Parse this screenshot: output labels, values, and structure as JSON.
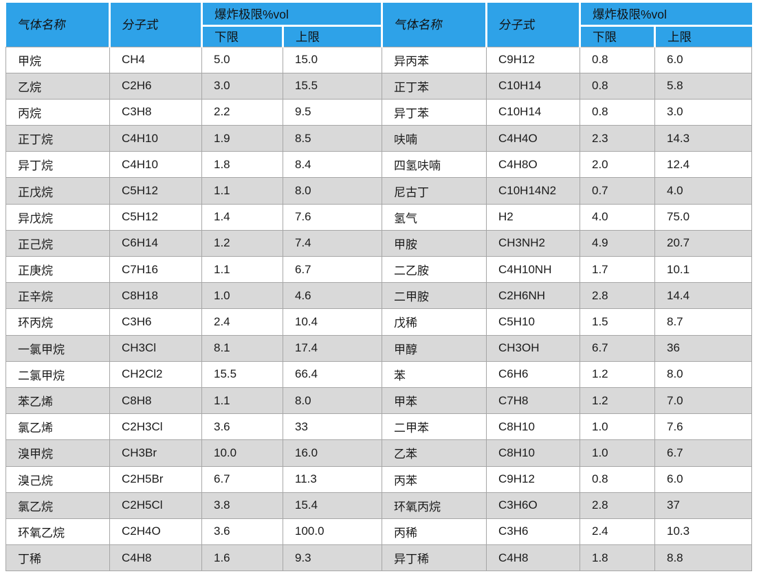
{
  "colors": {
    "header_bg": "#2EA2E8",
    "row_bg": "#FFFFFF",
    "row_alt_bg": "#D9D9D9",
    "border": "#A6A6A6",
    "text": "#1A1A1A"
  },
  "header": {
    "gas_name": "气体名称",
    "formula": "分子式",
    "limits": "爆炸极限%vol",
    "lower": "下限",
    "upper": "上限"
  },
  "left_rows": [
    {
      "name": "甲烷",
      "formula": "CH4",
      "lower": "5.0",
      "upper": "15.0"
    },
    {
      "name": "乙烷",
      "formula": "C2H6",
      "lower": "3.0",
      "upper": "15.5"
    },
    {
      "name": "丙烷",
      "formula": "C3H8",
      "lower": "2.2",
      "upper": "9.5"
    },
    {
      "name": "正丁烷",
      "formula": "C4H10",
      "lower": "1.9",
      "upper": "8.5"
    },
    {
      "name": "异丁烷",
      "formula": "C4H10",
      "lower": "1.8",
      "upper": "8.4"
    },
    {
      "name": "正戊烷",
      "formula": "C5H12",
      "lower": "1.1",
      "upper": "8.0"
    },
    {
      "name": "异戊烷",
      "formula": "C5H12",
      "lower": "1.4",
      "upper": "7.6"
    },
    {
      "name": "正己烷",
      "formula": "C6H14",
      "lower": "1.2",
      "upper": "7.4"
    },
    {
      "name": "正庚烷",
      "formula": "C7H16",
      "lower": "1.1",
      "upper": "6.7"
    },
    {
      "name": "正辛烷",
      "formula": "C8H18",
      "lower": "1.0",
      "upper": "4.6"
    },
    {
      "name": "环丙烷",
      "formula": "C3H6",
      "lower": "2.4",
      "upper": "10.4"
    },
    {
      "name": "一氯甲烷",
      "formula": "CH3Cl",
      "lower": "8.1",
      "upper": "17.4"
    },
    {
      "name": "二氯甲烷",
      "formula": "CH2Cl2",
      "lower": "15.5",
      "upper": "66.4"
    },
    {
      "name": "苯乙烯",
      "formula": "C8H8",
      "lower": "1.1",
      "upper": "8.0"
    },
    {
      "name": "氯乙烯",
      "formula": "C2H3Cl",
      "lower": "3.6",
      "upper": "33"
    },
    {
      "name": "溴甲烷",
      "formula": "CH3Br",
      "lower": "10.0",
      "upper": "16.0"
    },
    {
      "name": "溴己烷",
      "formula": "C2H5Br",
      "lower": "6.7",
      "upper": "11.3"
    },
    {
      "name": "氯乙烷",
      "formula": "C2H5Cl",
      "lower": "3.8",
      "upper": "15.4"
    },
    {
      "name": "环氧乙烷",
      "formula": "C2H4O",
      "lower": "3.6",
      "upper": "100.0"
    },
    {
      "name": "丁稀",
      "formula": "C4H8",
      "lower": "1.6",
      "upper": "9.3"
    }
  ],
  "right_rows": [
    {
      "name": "异丙苯",
      "formula": "C9H12",
      "lower": "0.8",
      "upper": "6.0"
    },
    {
      "name": "正丁苯",
      "formula": "C10H14",
      "lower": "0.8",
      "upper": "5.8"
    },
    {
      "name": "异丁苯",
      "formula": "C10H14",
      "lower": "0.8",
      "upper": "3.0"
    },
    {
      "name": "呋喃",
      "formula": "C4H4O",
      "lower": "2.3",
      "upper": "14.3"
    },
    {
      "name": "四氢呋喃",
      "formula": "C4H8O",
      "lower": "2.0",
      "upper": "12.4"
    },
    {
      "name": "尼古丁",
      "formula": "C10H14N2",
      "lower": "0.7",
      "upper": "4.0"
    },
    {
      "name": "氢气",
      "formula": "H2",
      "lower": "4.0",
      "upper": "75.0"
    },
    {
      "name": "甲胺",
      "formula": "CH3NH2",
      "lower": "4.9",
      "upper": "20.7"
    },
    {
      "name": "二乙胺",
      "formula": "C4H10NH",
      "lower": "1.7",
      "upper": "10.1"
    },
    {
      "name": "二甲胺",
      "formula": "C2H6NH",
      "lower": "2.8",
      "upper": "14.4"
    },
    {
      "name": "戊稀",
      "formula": "C5H10",
      "lower": "1.5",
      "upper": "8.7"
    },
    {
      "name": "甲醇",
      "formula": "CH3OH",
      "lower": "6.7",
      "upper": "36"
    },
    {
      "name": "苯",
      "formula": "C6H6",
      "lower": "1.2",
      "upper": "8.0"
    },
    {
      "name": "甲苯",
      "formula": "C7H8",
      "lower": "1.2",
      "upper": "7.0"
    },
    {
      "name": "二甲苯",
      "formula": "C8H10",
      "lower": "1.0",
      "upper": "7.6"
    },
    {
      "name": "乙苯",
      "formula": "C8H10",
      "lower": "1.0",
      "upper": "6.7"
    },
    {
      "name": "丙苯",
      "formula": "C9H12",
      "lower": "0.8",
      "upper": "6.0"
    },
    {
      "name": "环氧丙烷",
      "formula": "C3H6O",
      "lower": "2.8",
      "upper": "37"
    },
    {
      "name": "丙稀",
      "formula": "C3H6",
      "lower": "2.4",
      "upper": "10.3"
    },
    {
      "name": "异丁稀",
      "formula": "C4H8",
      "lower": "1.8",
      "upper": "8.8"
    }
  ]
}
